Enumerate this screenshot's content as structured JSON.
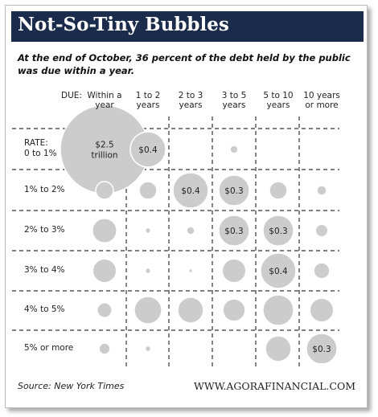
{
  "chart_data": {
    "type": "bubble-grid",
    "title": "Not-So-Tiny Bubbles",
    "subtitle": "At the end of October, 36 percent of the debt held by the public was due within a year.",
    "column_header": "DUE:",
    "columns": [
      "Within a year",
      "1 to 2 years",
      "2 to 3 years",
      "3 to 5 years",
      "5 to 10 years",
      "10 years or more"
    ],
    "row_header": "RATE:",
    "rows": [
      "0 to 1%",
      "1% to 2%",
      "2% to 3%",
      "3% to 4%",
      "4% to 5%",
      "5% or more"
    ],
    "values": [
      [
        2.5,
        0.4,
        null,
        0.02,
        null,
        null
      ],
      [
        0.1,
        0.1,
        0.4,
        0.3,
        0.1,
        0.03
      ],
      [
        0.19,
        0.01,
        0.02,
        0.3,
        0.3,
        0.05
      ],
      [
        0.18,
        0.01,
        0.005,
        0.18,
        0.4,
        0.08
      ],
      [
        0.07,
        0.24,
        0.21,
        0.16,
        0.3,
        0.18
      ],
      [
        0.04,
        0.01,
        null,
        null,
        0.21,
        0.3
      ]
    ],
    "value_labels": [
      [
        "$2.5 trillion",
        "$0.4",
        null,
        null,
        null,
        null
      ],
      [
        null,
        null,
        "$0.4",
        "$0.3",
        null,
        null
      ],
      [
        null,
        null,
        null,
        "$0.3",
        "$0.3",
        null
      ],
      [
        null,
        null,
        null,
        null,
        "$0.4",
        null
      ],
      [
        null,
        null,
        null,
        null,
        null,
        null
      ],
      [
        null,
        null,
        null,
        null,
        null,
        "$0.3"
      ]
    ],
    "color": "#cccccc",
    "source": "Source: New York Times",
    "website": "WWW.AGORAFINANCIAL.COM"
  }
}
